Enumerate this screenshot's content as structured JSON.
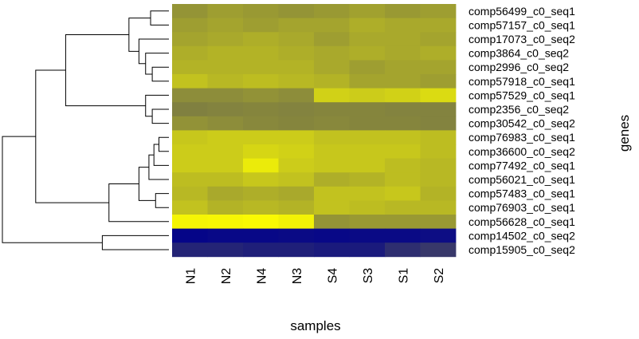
{
  "chart_data": {
    "type": "heatmap",
    "xlabel": "samples",
    "ylabel": "genes",
    "columns": [
      "N1",
      "N2",
      "N4",
      "N3",
      "S4",
      "S3",
      "S1",
      "S2"
    ],
    "rows": [
      "comp56499_c0_seq1",
      "comp57157_c0_seq1",
      "comp17073_c0_seq2",
      "comp3864_c0_seq2",
      "comp2996_c0_seq2",
      "comp57918_c0_seq1",
      "comp57529_c0_seq1",
      "comp2356_c0_seq2",
      "comp30542_c0_seq2",
      "comp76983_c0_seq1",
      "comp36600_c0_seq2",
      "comp77492_c0_seq1",
      "comp56021_c0_seq1",
      "comp57483_c0_seq1",
      "comp76903_c0_seq1",
      "comp56628_c0_seq1",
      "comp14502_c0_seq2",
      "comp15905_c0_seq2"
    ],
    "color_scale": {
      "low": "#00008b",
      "mid": "#808040",
      "high": "#ffff00"
    },
    "values": [
      [
        0.58,
        0.62,
        0.6,
        0.58,
        0.6,
        0.63,
        0.6,
        0.62
      ],
      [
        0.62,
        0.64,
        0.62,
        0.64,
        0.64,
        0.68,
        0.66,
        0.66
      ],
      [
        0.64,
        0.66,
        0.68,
        0.66,
        0.62,
        0.66,
        0.66,
        0.64
      ],
      [
        0.68,
        0.7,
        0.7,
        0.68,
        0.66,
        0.68,
        0.66,
        0.68
      ],
      [
        0.7,
        0.7,
        0.7,
        0.7,
        0.66,
        0.62,
        0.64,
        0.64
      ],
      [
        0.76,
        0.72,
        0.74,
        0.72,
        0.7,
        0.64,
        0.64,
        0.62
      ],
      [
        0.55,
        0.55,
        0.57,
        0.55,
        0.82,
        0.8,
        0.82,
        0.86
      ],
      [
        0.5,
        0.51,
        0.52,
        0.51,
        0.52,
        0.52,
        0.51,
        0.51
      ],
      [
        0.57,
        0.55,
        0.53,
        0.52,
        0.53,
        0.52,
        0.52,
        0.51
      ],
      [
        0.78,
        0.8,
        0.8,
        0.8,
        0.76,
        0.76,
        0.76,
        0.74
      ],
      [
        0.8,
        0.8,
        0.84,
        0.82,
        0.78,
        0.78,
        0.78,
        0.74
      ],
      [
        0.8,
        0.8,
        0.92,
        0.8,
        0.78,
        0.78,
        0.74,
        0.72
      ],
      [
        0.74,
        0.74,
        0.78,
        0.76,
        0.68,
        0.7,
        0.74,
        0.72
      ],
      [
        0.72,
        0.66,
        0.68,
        0.66,
        0.76,
        0.76,
        0.78,
        0.7
      ],
      [
        0.76,
        0.7,
        0.72,
        0.7,
        0.76,
        0.74,
        0.72,
        0.72
      ],
      [
        0.96,
        0.97,
        0.98,
        0.95,
        0.58,
        0.6,
        0.6,
        0.6
      ],
      [
        0.02,
        0.03,
        0.03,
        0.04,
        0.03,
        0.04,
        0.04,
        0.05
      ],
      [
        0.14,
        0.14,
        0.12,
        0.12,
        0.1,
        0.1,
        0.18,
        0.22
      ]
    ],
    "row_dendrogram": {
      "order_note_free": true,
      "merges": [
        [
          4,
          5,
          0.1
        ],
        [
          3,
          18,
          0.14
        ],
        [
          0,
          1,
          0.11
        ],
        [
          2,
          19,
          0.18
        ],
        [
          20,
          21,
          0.24
        ],
        [
          7,
          8,
          0.1
        ],
        [
          6,
          23,
          0.14
        ],
        [
          22,
          24,
          0.62
        ],
        [
          9,
          10,
          0.06
        ],
        [
          11,
          26,
          0.09
        ],
        [
          12,
          27,
          0.12
        ],
        [
          13,
          14,
          0.08
        ],
        [
          28,
          29,
          0.18
        ],
        [
          15,
          30,
          0.36
        ],
        [
          25,
          31,
          0.8
        ],
        [
          16,
          17,
          0.4
        ],
        [
          32,
          33,
          1.0
        ]
      ]
    }
  }
}
